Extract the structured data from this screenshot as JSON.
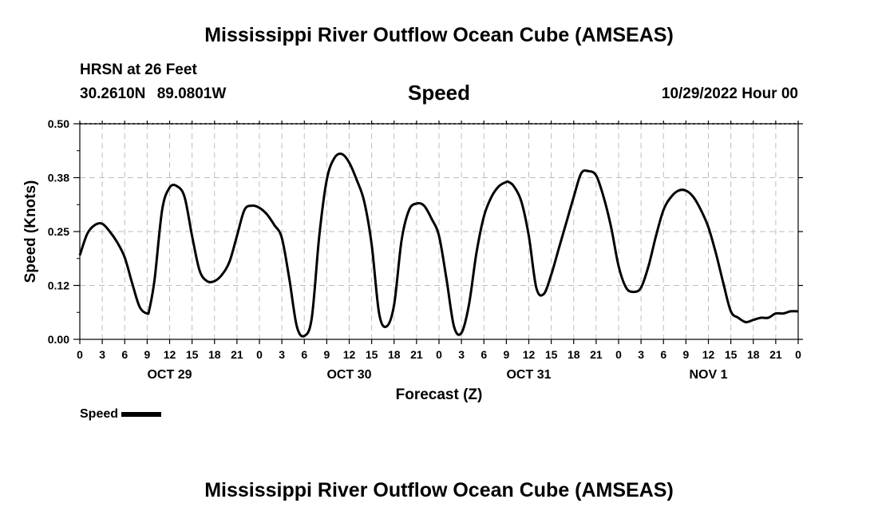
{
  "header": {
    "title_top": "Mississippi River Outflow Ocean Cube (AMSEAS)",
    "station": "HRSN at 26 Feet",
    "lat": "30.2610N",
    "lon": "89.0801W",
    "parameter": "Speed",
    "datetime": "10/29/2022 Hour 00",
    "title_bottom": "Mississippi River Outflow Ocean Cube (AMSEAS)"
  },
  "legend": {
    "label": "Speed",
    "color": "#000000"
  },
  "chart_data": {
    "type": "line",
    "title": "Speed",
    "xlabel": "Forecast (Z)",
    "ylabel": "Speed (Knots)",
    "ylim": [
      0,
      0.5
    ],
    "xlim": [
      0,
      96
    ],
    "yticks": [
      "0.00",
      "0.12",
      "0.25",
      "0.38",
      "0.50"
    ],
    "ytick_values": [
      0,
      0.125,
      0.25,
      0.375,
      0.5
    ],
    "xtick_labels": [
      "0",
      "3",
      "6",
      "9",
      "12",
      "15",
      "18",
      "21",
      "0",
      "3",
      "6",
      "9",
      "12",
      "15",
      "18",
      "21",
      "0",
      "3",
      "6",
      "9",
      "12",
      "15",
      "18",
      "21",
      "0",
      "3",
      "6",
      "9",
      "12",
      "15",
      "18",
      "21",
      "0"
    ],
    "day_labels": [
      {
        "hour": 12,
        "label": "OCT 29"
      },
      {
        "hour": 36,
        "label": "OCT 30"
      },
      {
        "hour": 60,
        "label": "OCT 31"
      },
      {
        "hour": 84,
        "label": "NOV 1"
      }
    ],
    "grid": true,
    "series": [
      {
        "name": "Speed",
        "color": "#000000",
        "x": [
          0,
          1,
          2,
          3,
          4,
          5,
          6,
          7,
          8,
          9,
          9.3,
          10,
          11,
          12,
          13,
          14,
          15,
          16,
          17,
          18,
          19,
          20,
          21,
          22,
          23,
          24,
          25,
          26,
          27,
          28,
          29,
          30,
          31,
          32,
          33,
          34,
          35,
          36,
          37,
          38,
          39,
          40,
          41,
          42,
          43,
          44,
          45,
          46,
          47,
          48,
          49,
          50,
          51,
          52,
          53,
          54,
          55,
          56,
          57,
          57.3,
          58,
          59,
          60,
          61,
          62,
          63,
          64,
          65,
          66,
          67,
          68,
          69,
          70,
          71,
          72,
          73,
          74,
          75,
          76,
          77,
          78,
          79,
          80,
          81,
          82,
          83,
          84,
          85,
          86,
          87,
          88,
          89,
          90,
          91,
          92,
          93,
          94,
          95,
          96
        ],
        "values": [
          0.195,
          0.245,
          0.265,
          0.268,
          0.25,
          0.225,
          0.19,
          0.13,
          0.075,
          0.06,
          0.07,
          0.14,
          0.3,
          0.352,
          0.355,
          0.33,
          0.24,
          0.16,
          0.135,
          0.135,
          0.15,
          0.18,
          0.24,
          0.3,
          0.31,
          0.305,
          0.29,
          0.265,
          0.235,
          0.14,
          0.03,
          0.008,
          0.05,
          0.24,
          0.37,
          0.42,
          0.43,
          0.41,
          0.37,
          0.32,
          0.22,
          0.06,
          0.03,
          0.08,
          0.23,
          0.3,
          0.315,
          0.31,
          0.28,
          0.24,
          0.14,
          0.03,
          0.015,
          0.08,
          0.2,
          0.285,
          0.33,
          0.355,
          0.365,
          0.365,
          0.355,
          0.32,
          0.24,
          0.12,
          0.105,
          0.15,
          0.21,
          0.27,
          0.33,
          0.385,
          0.39,
          0.38,
          0.33,
          0.26,
          0.17,
          0.12,
          0.11,
          0.12,
          0.17,
          0.24,
          0.3,
          0.33,
          0.345,
          0.345,
          0.33,
          0.3,
          0.26,
          0.2,
          0.13,
          0.065,
          0.05,
          0.04,
          0.045,
          0.05,
          0.05,
          0.06,
          0.06,
          0.065,
          0.065
        ]
      }
    ]
  }
}
